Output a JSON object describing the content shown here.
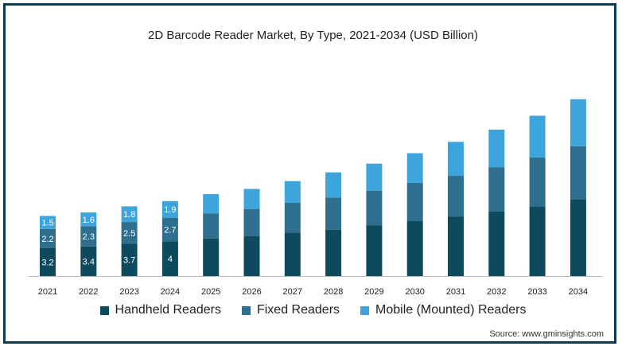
{
  "chart_data": {
    "type": "bar",
    "stacked": true,
    "title": "2D Barcode Reader Market, By Type, 2021-2034 (USD Billion)",
    "xlabel": "",
    "ylabel": "",
    "categories": [
      "2021",
      "2022",
      "2023",
      "2024",
      "2025",
      "2026",
      "2027",
      "2028",
      "2029",
      "2030",
      "2031",
      "2032",
      "2033",
      "2034"
    ],
    "series": [
      {
        "name": "Handheld Readers",
        "color": "#0d4a5e",
        "values": [
          3.2,
          3.4,
          3.7,
          4.0,
          4.3,
          4.6,
          5.0,
          5.3,
          5.8,
          6.3,
          6.8,
          7.4,
          8.0,
          8.8
        ]
      },
      {
        "name": "Fixed Readers",
        "color": "#2e6e8e",
        "values": [
          2.2,
          2.3,
          2.5,
          2.7,
          2.9,
          3.1,
          3.4,
          3.7,
          4.0,
          4.4,
          4.7,
          5.1,
          5.6,
          6.1
        ]
      },
      {
        "name": "Mobile (Mounted) Readers",
        "color": "#3da5dc",
        "values": [
          1.5,
          1.6,
          1.8,
          1.9,
          2.2,
          2.3,
          2.5,
          2.9,
          3.1,
          3.4,
          3.9,
          4.3,
          4.8,
          5.4
        ]
      }
    ],
    "data_labels": {
      "Handheld Readers": [
        "3.2",
        "3.4",
        "3.7",
        "4"
      ],
      "Fixed Readers": [
        "2.2",
        "2.3",
        "2.5",
        "2.7"
      ],
      "Mobile (Mounted) Readers": [
        "1.5",
        "1.6",
        "1.8",
        "1.9"
      ]
    },
    "ylim": [
      0,
      21
    ],
    "grid": false,
    "legend_position": "bottom"
  },
  "source": "Source: www.gminsights.com"
}
